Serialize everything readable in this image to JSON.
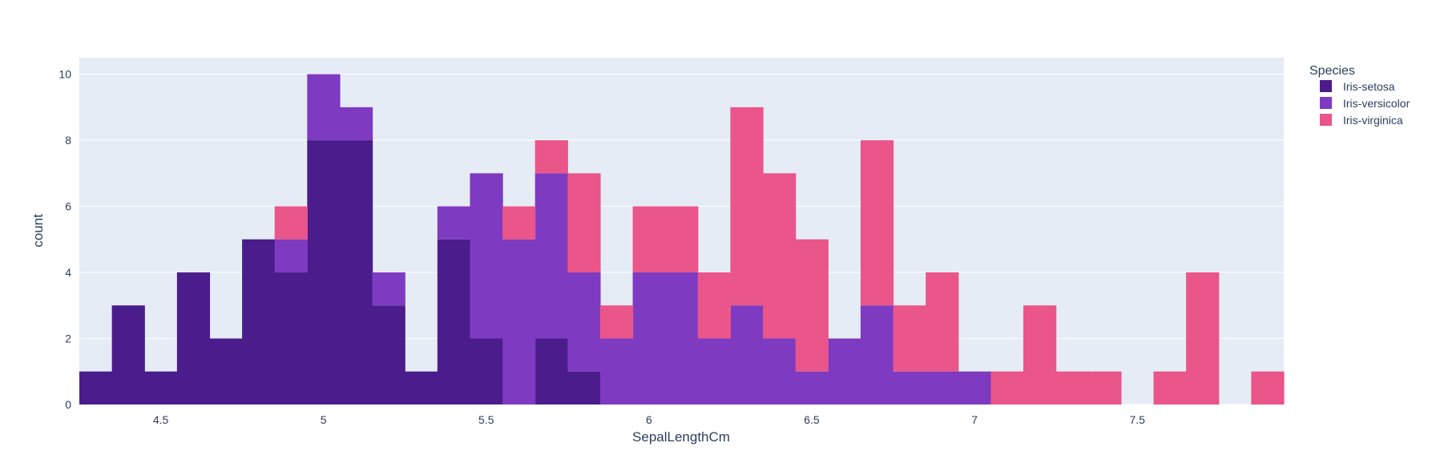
{
  "chart_data": {
    "type": "bar",
    "stacked": true,
    "xlabel": "SepalLengthCm",
    "ylabel": "count",
    "xlim": [
      4.25,
      7.95
    ],
    "ylim": [
      0,
      10.5
    ],
    "bin_start": 4.25,
    "bin_width": 0.1,
    "xticks": [
      4.5,
      5,
      5.5,
      6,
      6.5,
      7,
      7.5
    ],
    "xtick_labels": [
      "4.5",
      "5",
      "5.5",
      "6",
      "6.5",
      "7",
      "7.5"
    ],
    "yticks": [
      0,
      2,
      4,
      6,
      8,
      10
    ],
    "ytick_labels": [
      "0",
      "2",
      "4",
      "6",
      "8",
      "10"
    ],
    "bins": [
      "4.3",
      "4.4",
      "4.5",
      "4.6",
      "4.7",
      "4.8",
      "4.9",
      "5.0",
      "5.1",
      "5.2",
      "5.3",
      "5.4",
      "5.5",
      "5.6",
      "5.7",
      "5.8",
      "5.9",
      "6.0",
      "6.1",
      "6.2",
      "6.3",
      "6.4",
      "6.5",
      "6.6",
      "6.7",
      "6.8",
      "6.9",
      "7.0",
      "7.1",
      "7.2",
      "7.3",
      "7.4",
      "7.5",
      "7.6",
      "7.7",
      "7.8",
      "7.9"
    ],
    "series": [
      {
        "name": "Iris-setosa",
        "color": "#4a1c8c",
        "values": [
          1,
          3,
          1,
          4,
          2,
          5,
          4,
          8,
          8,
          3,
          1,
          5,
          2,
          0,
          2,
          1,
          0,
          0,
          0,
          0,
          0,
          0,
          0,
          0,
          0,
          0,
          0,
          0,
          0,
          0,
          0,
          0,
          0,
          0,
          0,
          0,
          0
        ]
      },
      {
        "name": "Iris-versicolor",
        "color": "#7e3ac1",
        "values": [
          0,
          0,
          0,
          0,
          0,
          0,
          1,
          2,
          1,
          1,
          0,
          1,
          5,
          5,
          5,
          3,
          2,
          4,
          4,
          2,
          3,
          2,
          1,
          2,
          3,
          1,
          1,
          1,
          0,
          0,
          0,
          0,
          0,
          0,
          0,
          0,
          0
        ]
      },
      {
        "name": "Iris-virginica",
        "color": "#ea558a",
        "values": [
          0,
          0,
          0,
          0,
          0,
          0,
          1,
          0,
          0,
          0,
          0,
          0,
          0,
          1,
          1,
          3,
          1,
          2,
          2,
          2,
          6,
          5,
          4,
          0,
          5,
          2,
          3,
          0,
          1,
          3,
          1,
          1,
          0,
          1,
          4,
          0,
          1
        ]
      }
    ],
    "legend": {
      "title": "Species",
      "position": "top-right"
    },
    "plot_bg": "#e5ecf6",
    "grid_color": "#ffffff"
  }
}
